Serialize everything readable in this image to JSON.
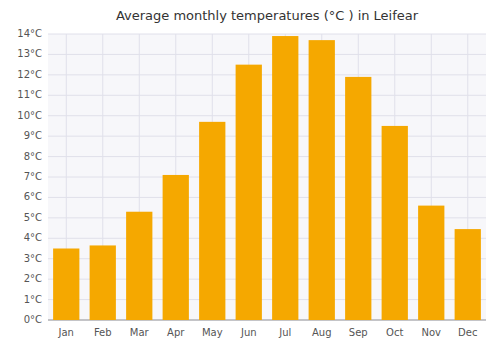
{
  "chart_data": {
    "type": "bar",
    "title": "Average monthly temperatures (°C ) in Leifear",
    "categories": [
      "Jan",
      "Feb",
      "Mar",
      "Apr",
      "May",
      "Jun",
      "Jul",
      "Aug",
      "Sep",
      "Oct",
      "Nov",
      "Dec"
    ],
    "values": [
      3.5,
      3.65,
      5.3,
      7.1,
      9.7,
      12.5,
      13.9,
      13.7,
      11.9,
      9.5,
      5.6,
      4.45
    ],
    "color": "#F5A800",
    "ylim": [
      0,
      14
    ],
    "yticks": [
      {
        "value": 0,
        "label": "0°C"
      },
      {
        "value": 1,
        "label": "1°C"
      },
      {
        "value": 2,
        "label": "2°C"
      },
      {
        "value": 3,
        "label": "3°C"
      },
      {
        "value": 4,
        "label": "4°C"
      },
      {
        "value": 5,
        "label": "5°C"
      },
      {
        "value": 6,
        "label": "6°C"
      },
      {
        "value": 7,
        "label": "7°C"
      },
      {
        "value": 8,
        "label": "8°C"
      },
      {
        "value": 9,
        "label": "9°C"
      },
      {
        "value": 10,
        "label": "10°C"
      },
      {
        "value": 11,
        "label": "11°C"
      },
      {
        "value": 12,
        "label": "12°C"
      },
      {
        "value": 13,
        "label": "13°C"
      },
      {
        "value": 14,
        "label": "14°C"
      }
    ],
    "grid": true
  }
}
